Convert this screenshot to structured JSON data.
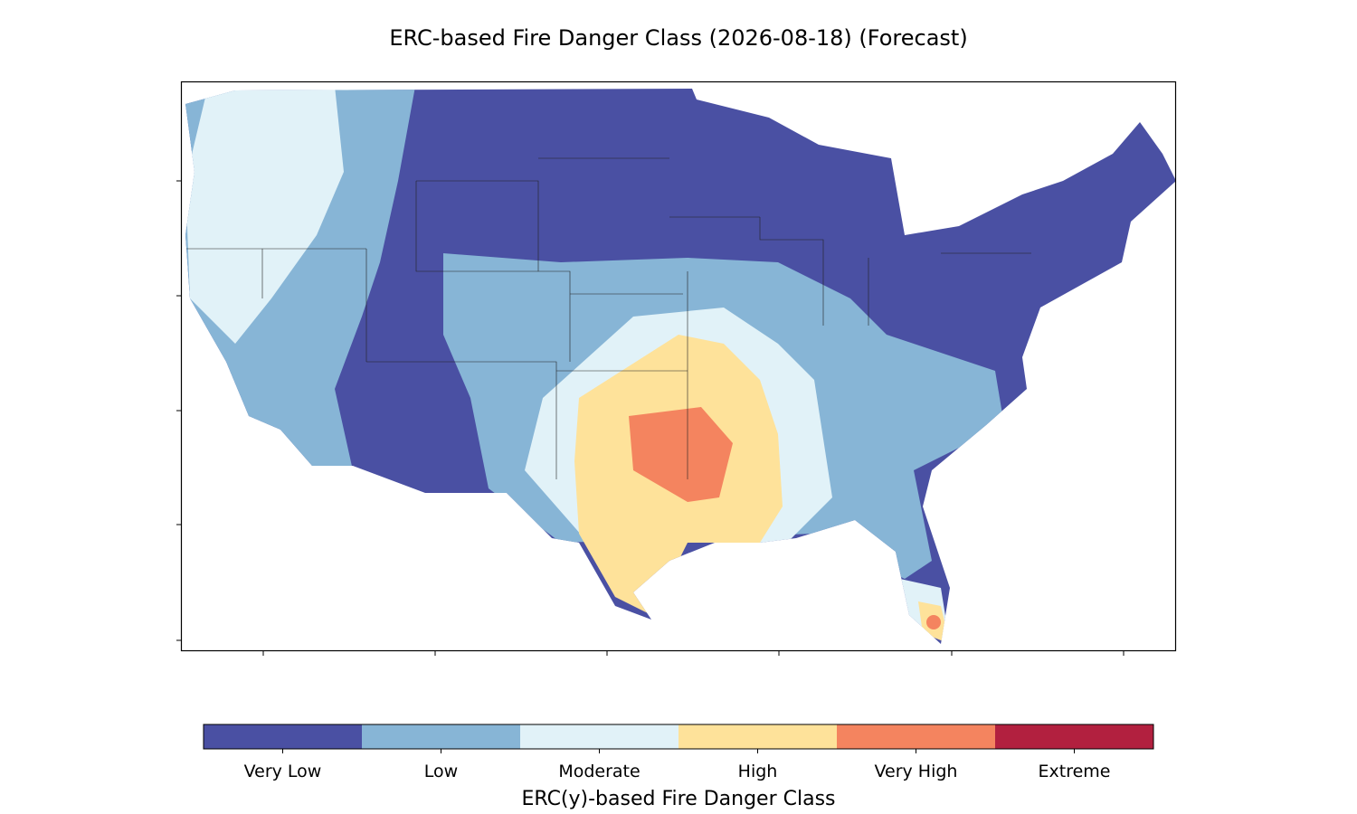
{
  "title": "ERC-based Fire Danger Class (2026-08-18) (Forecast)",
  "legend": {
    "label": "ERC(y)-based Fire Danger Class",
    "classes": [
      {
        "name": "Very Low",
        "color": "#4a50a3"
      },
      {
        "name": "Low",
        "color": "#87b5d6"
      },
      {
        "name": "Moderate",
        "color": "#e1f2f8"
      },
      {
        "name": "High",
        "color": "#fee29a"
      },
      {
        "name": "Very High",
        "color": "#f4845f"
      },
      {
        "name": "Extreme",
        "color": "#b2203f"
      }
    ]
  }
}
